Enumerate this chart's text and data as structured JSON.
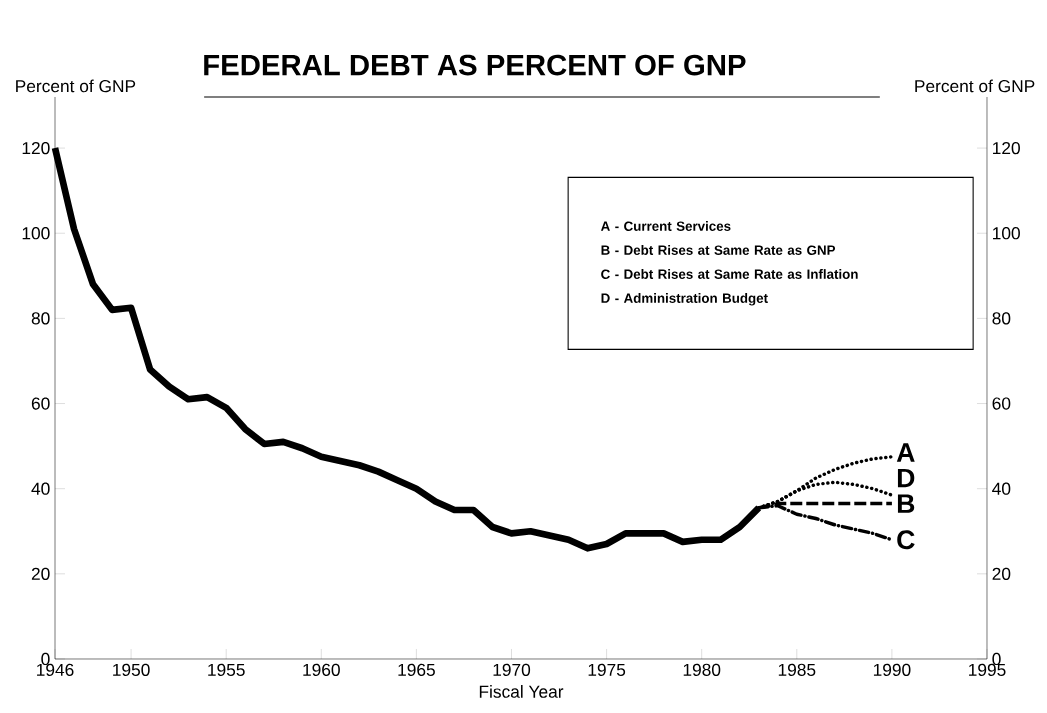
{
  "chart_data": {
    "type": "line",
    "title": "FEDERAL DEBT AS PERCENT OF GNP",
    "xlabel": "Fiscal Year",
    "ylabel": "Percent of GNP",
    "y2label": "Percent of GNP",
    "xlim": [
      1946,
      1995
    ],
    "xticks": [
      1946,
      1950,
      1955,
      1960,
      1965,
      1970,
      1975,
      1980,
      1985,
      1990,
      1995
    ],
    "ylim": [
      0,
      132
    ],
    "yticks": [
      0,
      20,
      40,
      60,
      80,
      100,
      120
    ],
    "y2lim": [
      0,
      132
    ],
    "y2ticks": [
      0,
      20,
      40,
      60,
      80,
      100,
      120
    ],
    "grid": false,
    "marker": "none",
    "annotations": [
      "**A** - Current Services",
      "**B** - Debt Rises at Same Rate as GNP",
      "**C** - Debt Rises at Same Rate as Inflation",
      "**D** - Administration Budget"
    ],
    "series": [
      {
        "color": "#000000",
        "line_style": "solid",
        "x": [
          1946,
          1947,
          1948,
          1949,
          1950,
          1951,
          1952,
          1953,
          1954,
          1955,
          1956,
          1957,
          1958,
          1959,
          1960,
          1961,
          1962,
          1963,
          1964,
          1965,
          1966,
          1967,
          1968,
          1969,
          1970,
          1971,
          1972,
          1973,
          1974,
          1975,
          1976,
          1977,
          1978,
          1979,
          1980,
          1981,
          1982,
          1983
        ],
        "values": [
          120,
          101,
          88,
          82,
          82.5,
          68,
          64,
          61,
          61.5,
          59,
          54,
          50.5,
          51,
          49.5,
          47.5,
          46.5,
          45.5,
          44,
          42,
          40,
          37,
          35,
          35,
          31,
          29.5,
          30,
          29,
          28,
          26,
          27,
          29.5,
          29.5,
          29.5,
          27.5,
          28,
          28,
          31,
          35.5
        ]
      },
      {
        "name": "A",
        "color": "#000000",
        "line_style": "dotted",
        "x": [
          1983,
          1984,
          1985,
          1986,
          1987,
          1988,
          1989,
          1990
        ],
        "values": [
          35.5,
          37,
          39.5,
          42.5,
          44.5,
          46,
          47,
          47.5
        ]
      },
      {
        "name": "D",
        "color": "#000000",
        "line_style": "dotted",
        "x": [
          1983,
          1984,
          1985,
          1986,
          1987,
          1988,
          1989,
          1990
        ],
        "values": [
          35.5,
          37,
          39.5,
          41,
          41.5,
          41,
          40,
          38.5
        ]
      },
      {
        "name": "B",
        "color": "#000000",
        "line_style": "dashed",
        "x": [
          1983,
          1984,
          1985,
          1986,
          1987,
          1988,
          1989,
          1990
        ],
        "values": [
          35.5,
          36.5,
          36.5,
          36.5,
          36.5,
          36.5,
          36.5,
          36.5
        ]
      },
      {
        "name": "C",
        "color": "#000000",
        "line_style": "dashdot",
        "x": [
          1983,
          1984,
          1985,
          1986,
          1987,
          1988,
          1989,
          1990
        ],
        "values": [
          35.5,
          36,
          34,
          33,
          31.5,
          30.5,
          29.5,
          28
        ]
      }
    ]
  }
}
